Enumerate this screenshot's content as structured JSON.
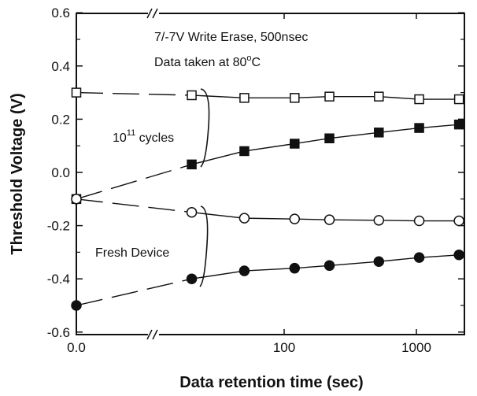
{
  "chart_data": {
    "type": "line",
    "title": "",
    "xlabel": "Data retention time (sec)",
    "ylabel": "Threshold Voltage (V)",
    "ylim": [
      -0.6,
      0.6
    ],
    "x_scale": "broken axis: 0.0, then log",
    "xlim_log": [
      10,
      2300
    ],
    "x_ticks": [
      "0.0",
      "100",
      "1000"
    ],
    "y_ticks": [
      "0.6",
      "0.4",
      "0.2",
      "0.0",
      "-0.2",
      "-0.4",
      "-0.6"
    ],
    "grid": false,
    "x": [
      0,
      20,
      50,
      120,
      220,
      520,
      1050,
      2100
    ],
    "series": [
      {
        "marker": "open-square",
        "values": [
          0.3,
          0.29,
          0.28,
          0.28,
          0.285,
          0.285,
          0.275,
          0.275
        ]
      },
      {
        "marker": "filled-square",
        "values": [
          -0.1,
          0.03,
          0.08,
          0.108,
          0.128,
          0.15,
          0.167,
          0.18
        ]
      },
      {
        "marker": "open-circle",
        "values": [
          -0.1,
          -0.15,
          -0.172,
          -0.175,
          -0.178,
          -0.18,
          -0.182,
          -0.182
        ]
      },
      {
        "marker": "filled-circle",
        "values": [
          -0.5,
          -0.4,
          -0.37,
          -0.36,
          -0.35,
          -0.335,
          -0.32,
          -0.31
        ]
      }
    ],
    "annotations": {
      "condition": "7/-7V Write Erase, 500nsec",
      "temp_prefix": "Data taken at 80",
      "temp_degree": "o",
      "temp_unit": "C",
      "cycles_base": "10",
      "cycles_exp": "11",
      "cycles_suffix": " cycles",
      "fresh": "Fresh Device"
    },
    "colors": {
      "ink": "#111111",
      "background": "#ffffff"
    }
  }
}
